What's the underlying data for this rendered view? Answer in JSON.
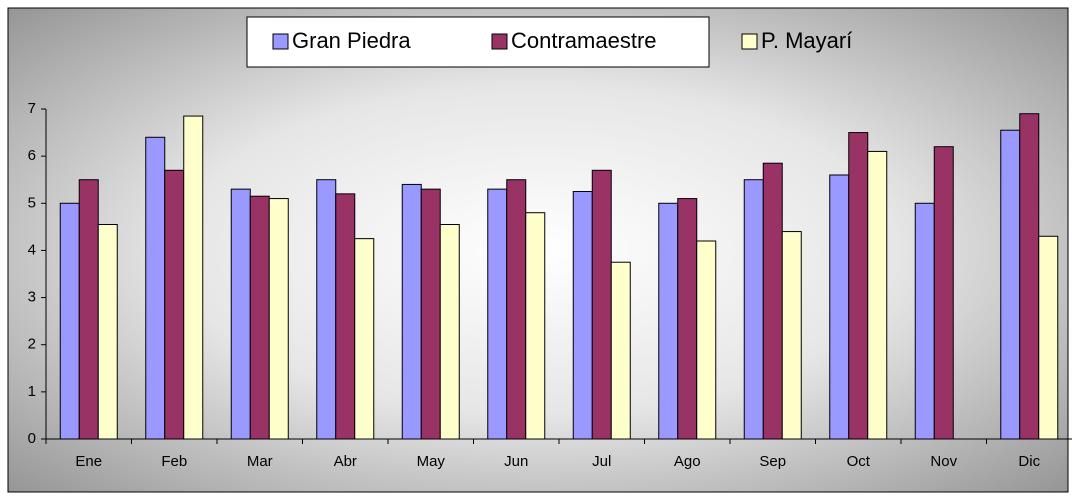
{
  "chart_data": {
    "type": "bar",
    "categories": [
      "Ene",
      "Feb",
      "Mar",
      "Abr",
      "May",
      "Jun",
      "Jul",
      "Ago",
      "Sep",
      "Oct",
      "Nov",
      "Dic"
    ],
    "series": [
      {
        "name": "Gran Piedra",
        "color": "#9999ff",
        "values": [
          5.0,
          6.4,
          5.3,
          5.5,
          5.4,
          5.3,
          5.25,
          5.0,
          5.5,
          5.6,
          5.0,
          6.55
        ]
      },
      {
        "name": "Contramaestre",
        "color": "#993366",
        "values": [
          5.5,
          5.7,
          5.15,
          5.2,
          5.3,
          5.5,
          5.7,
          5.1,
          5.85,
          6.5,
          6.2,
          6.9
        ]
      },
      {
        "name": "P. Mayarí",
        "color": "#ffffcc",
        "values": [
          4.55,
          6.85,
          5.1,
          4.25,
          4.55,
          4.8,
          3.75,
          4.2,
          4.4,
          6.1,
          null,
          4.3
        ]
      }
    ],
    "ylim": [
      0,
      7
    ],
    "yticks": [
      0,
      1,
      2,
      3,
      4,
      5,
      6,
      7
    ],
    "legend": "top"
  }
}
